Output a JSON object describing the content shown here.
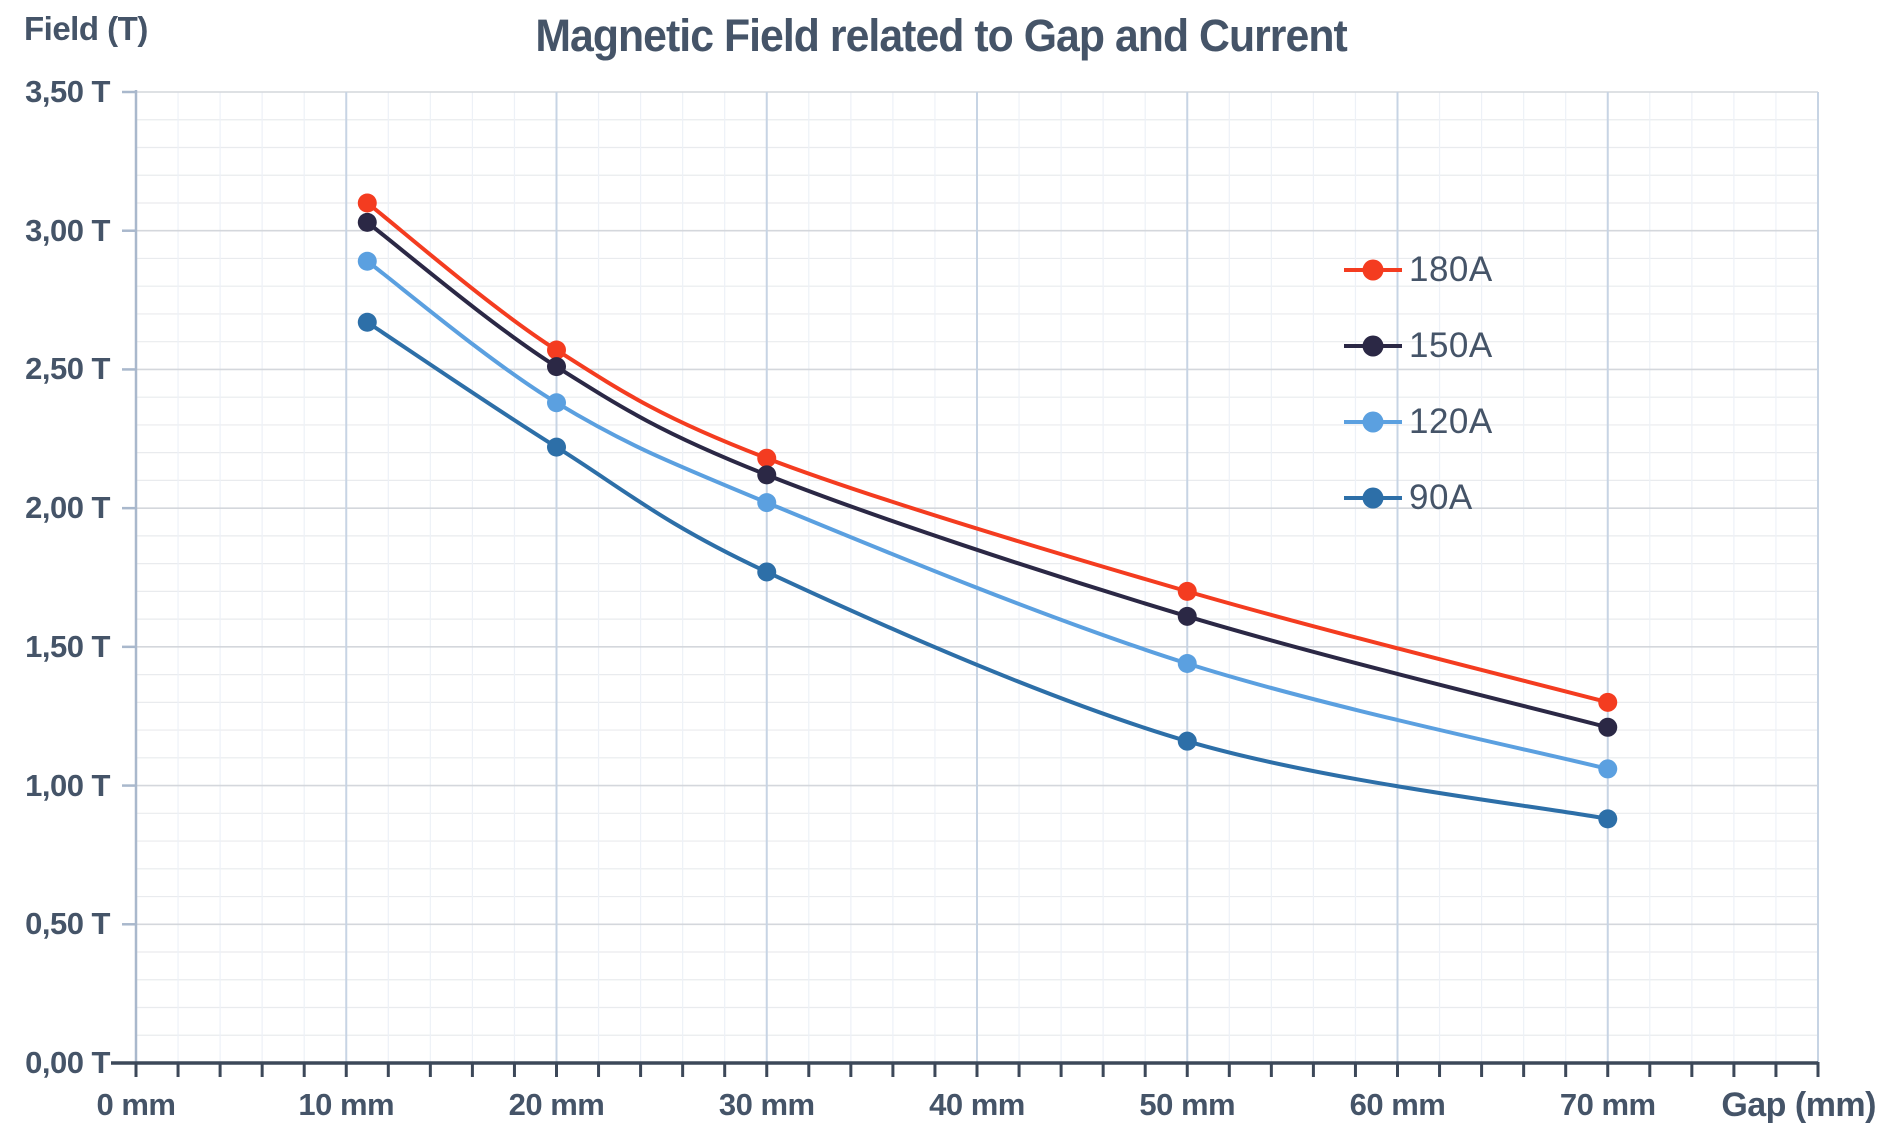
{
  "title": "Magnetic Field related to Gap and Current",
  "axes": {
    "y_title": "Field (T)",
    "x_title": "Gap (mm)",
    "x_tick_values": [
      0,
      10,
      20,
      30,
      40,
      50,
      60,
      70
    ],
    "x_tick_labels": [
      "0 mm",
      "10 mm",
      "20 mm",
      "30 mm",
      "40 mm",
      "50 mm",
      "60 mm",
      "70 mm"
    ],
    "y_tick_values": [
      0,
      0.5,
      1.0,
      1.5,
      2.0,
      2.5,
      3.0,
      3.5
    ],
    "y_tick_labels": [
      "0,00 T",
      "0,50 T",
      "1,00 T",
      "1,50 T",
      "2,00 T",
      "2,50 T",
      "3,00 T",
      "3,50 T"
    ]
  },
  "chart_data": {
    "type": "line",
    "title": "Magnetic Field related to Gap and Current",
    "xlabel": "Gap (mm)",
    "ylabel": "Field (T)",
    "x": [
      11,
      20,
      30,
      50,
      70
    ],
    "series": [
      {
        "name": "180A",
        "color": "#f43c20",
        "values": [
          3.1,
          2.57,
          2.18,
          1.7,
          1.3
        ]
      },
      {
        "name": "150A",
        "color": "#2b2845",
        "values": [
          3.03,
          2.51,
          2.12,
          1.61,
          1.21
        ]
      },
      {
        "name": "120A",
        "color": "#5ba0e0",
        "values": [
          2.89,
          2.38,
          2.02,
          1.44,
          1.06
        ]
      },
      {
        "name": "90A",
        "color": "#2d6fa8",
        "values": [
          2.67,
          2.22,
          1.77,
          1.16,
          0.88
        ]
      }
    ],
    "xlim": [
      0,
      80
    ],
    "ylim": [
      0,
      3.5
    ],
    "x_major_step": 10,
    "x_minor_step": 2,
    "y_major_step": 0.5,
    "y_minor_step": 0.1,
    "grid": true,
    "legend_position": "upper-right"
  },
  "colors": {
    "background": "#ffffff",
    "text": "#455468",
    "axis_dark": "#3c4859",
    "axis_light": "#a9b8cc",
    "grid_minor_h": "#e9ebee",
    "grid_major_h": "#d4d7dc",
    "grid_minor_v": "#edf1f7",
    "grid_major_v": "#c7d4e4"
  }
}
